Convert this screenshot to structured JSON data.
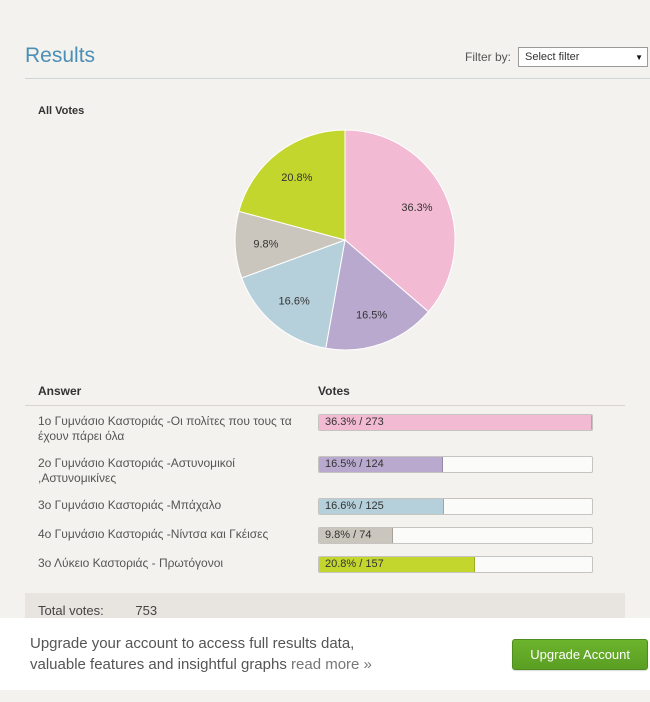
{
  "header": {
    "title": "Results",
    "filter_label": "Filter by:",
    "filter_value": "Select filter"
  },
  "chart": {
    "section_label": "All Votes"
  },
  "chart_data": {
    "type": "pie",
    "title": "All Votes",
    "labels": [
      "1ο Γυμνάσιο Καστοριάς -Οι πολίτες που τους τα έχουν πάρει όλα",
      "2ο Γυμνάσιο Καστοριάς -Αστυνομικοί ,Αστυνομικίνες",
      "3ο Γυμνάσιο Καστοριάς -Μπάχαλο",
      "4ο Γυμνάσιο Καστοριάς -Νίντσα και Γκέισες",
      "3ο Λύκειο Καστοριάς - Πρωτόγονοι"
    ],
    "percents": [
      36.3,
      16.5,
      16.6,
      9.8,
      20.8
    ],
    "votes": [
      273,
      124,
      125,
      74,
      157
    ],
    "colors": [
      "#f3bad3",
      "#b9a9ce",
      "#b5d0da",
      "#cbc6bd",
      "#c3d62e"
    ],
    "start_angle_deg": -90,
    "direction": "clockwise",
    "total_votes": 753
  },
  "table": {
    "headers": {
      "answer": "Answer",
      "votes": "Votes"
    },
    "rows": [
      {
        "answer": "1ο Γυμνάσιο Καστοριάς -Οι πολίτες που τους τα έχουν πάρει όλα",
        "bar_label": "36.3% / 273",
        "pct": 36.3,
        "color": "#f3bad3"
      },
      {
        "answer": "2ο Γυμνάσιο Καστοριάς -Αστυνομικοί ,Αστυνομικίνες",
        "bar_label": "16.5% / 124",
        "pct": 16.5,
        "color": "#b9a9ce"
      },
      {
        "answer": "3ο Γυμνάσιο Καστοριάς -Μπάχαλο",
        "bar_label": "16.6% / 125",
        "pct": 16.6,
        "color": "#b5d0da"
      },
      {
        "answer": "4ο Γυμνάσιο Καστοριάς -Νίντσα και Γκέισες",
        "bar_label": "9.8% / 74",
        "pct": 9.8,
        "color": "#cbc6bd"
      },
      {
        "answer": "3ο Λύκειο Καστοριάς - Πρωτόγονοι",
        "bar_label": "20.8% / 157",
        "pct": 20.8,
        "color": "#c3d62e"
      }
    ],
    "total_label": "Total votes:",
    "total_value": "753"
  },
  "footer": {
    "line1": "Upgrade your account to access full results data,",
    "line2": "valuable features and insightful graphs",
    "read_more": "read more »",
    "button_label": "Upgrade Account"
  }
}
